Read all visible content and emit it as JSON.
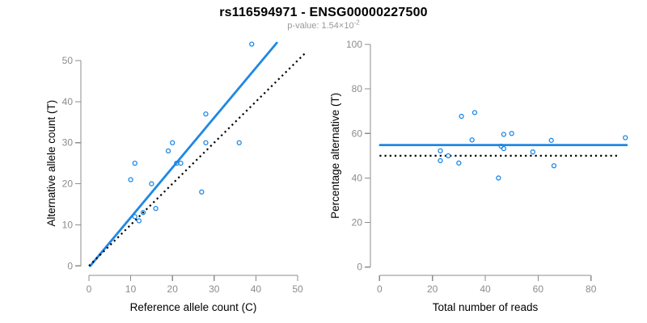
{
  "header": {
    "title": "rs116594971 - ENSG00000227500",
    "subtitle_prefix": "p-value: 1.54×10",
    "subtitle_exponent": "-2"
  },
  "colors": {
    "accent": "#1E88E5",
    "reference_line": "#000000",
    "axis": "#8C8C8C",
    "tick_label": "#8C8C8C",
    "axis_title": "#000000",
    "title": "#000000",
    "subtitle": "#999999",
    "background": "#FFFFFF"
  },
  "chart_data": [
    {
      "name": "allele-counts-scatter",
      "type": "scatter",
      "title": "",
      "xlabel": "Reference allele count (C)",
      "ylabel": "Alternative allele count (T)",
      "xticks": [
        0,
        10,
        20,
        30,
        40,
        50
      ],
      "yticks": [
        0,
        10,
        20,
        30,
        40,
        50
      ],
      "xlim": [
        0,
        52
      ],
      "ylim": [
        0,
        55
      ],
      "grid": false,
      "legend": false,
      "points": [
        [
          39,
          54
        ],
        [
          28,
          37
        ],
        [
          20,
          30
        ],
        [
          28,
          30
        ],
        [
          36,
          30
        ],
        [
          19,
          28
        ],
        [
          11,
          25
        ],
        [
          21,
          25
        ],
        [
          22,
          25
        ],
        [
          10,
          21
        ],
        [
          15,
          20
        ],
        [
          27,
          18
        ],
        [
          16,
          14
        ],
        [
          13,
          13
        ],
        [
          11,
          12
        ],
        [
          12,
          11
        ]
      ],
      "lines": [
        {
          "name": "fit-line",
          "x1": 0.3,
          "y1": 0,
          "x2": 45,
          "y2": 54.3,
          "style": "solid",
          "color": "accent"
        },
        {
          "name": "identity-line",
          "x1": 0,
          "y1": 0,
          "x2": 52,
          "y2": 52,
          "style": "dotted",
          "color": "reference_line"
        }
      ]
    },
    {
      "name": "percentage-vs-reads-scatter",
      "type": "scatter",
      "title": "",
      "xlabel": "Total number of reads",
      "ylabel": "Percentage alternative (T)",
      "xticks": [
        0,
        20,
        40,
        60,
        80
      ],
      "yticks": [
        0,
        20,
        40,
        60,
        80,
        100
      ],
      "xlim": [
        0,
        94
      ],
      "ylim": [
        0,
        100
      ],
      "grid": false,
      "legend": false,
      "points": [
        [
          93,
          58.1
        ],
        [
          65,
          56.9
        ],
        [
          50,
          60
        ],
        [
          66,
          45.5
        ],
        [
          58,
          51.7
        ],
        [
          47,
          59.6
        ],
        [
          36,
          69.4
        ],
        [
          46,
          54.3
        ],
        [
          47,
          53.2
        ],
        [
          31,
          67.7
        ],
        [
          35,
          57.1
        ],
        [
          45,
          40
        ],
        [
          30,
          46.7
        ],
        [
          26,
          50
        ],
        [
          23,
          52.2
        ],
        [
          23,
          47.8
        ]
      ],
      "lines": [
        {
          "name": "fit-line",
          "x1": 0.2,
          "y1": 54.8,
          "x2": 93.5,
          "y2": 54.8,
          "style": "solid",
          "color": "accent"
        },
        {
          "name": "null-line",
          "x1": 0,
          "y1": 50,
          "x2": 91,
          "y2": 50,
          "style": "dotted",
          "color": "reference_line"
        }
      ]
    }
  ]
}
